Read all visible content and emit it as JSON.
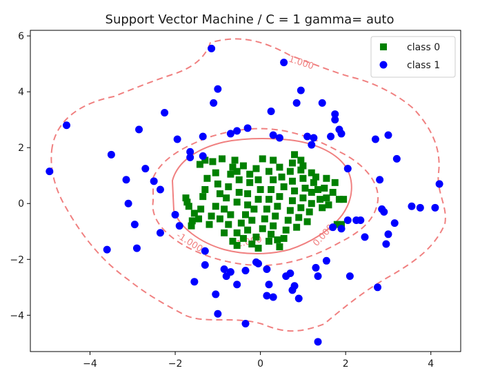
{
  "chart_data": {
    "type": "scatter",
    "title": "Support Vector Machine / C = 1 gamma= auto",
    "xlabel": "",
    "ylabel": "",
    "xlim": [
      -5.4,
      4.7
    ],
    "ylim": [
      -5.3,
      6.2
    ],
    "x_ticks": [
      -4,
      -2,
      0,
      2,
      4
    ],
    "y_ticks": [
      -4,
      -2,
      0,
      2,
      4,
      6
    ],
    "x_tick_labels": [
      "−4",
      "−2",
      "0",
      "2",
      "4"
    ],
    "y_tick_labels": [
      "−4",
      "−2",
      "0",
      "2",
      "4",
      "6"
    ],
    "grid": false,
    "legend_position": "upper right",
    "colors": {
      "class0": "#008000",
      "class1": "#0000ff",
      "contour": "#f08080",
      "axes": "#000000"
    },
    "series": [
      {
        "name": "class 0",
        "marker": "square",
        "points": [
          [
            -1.75,
            0.2
          ],
          [
            -1.72,
            0.05
          ],
          [
            -1.68,
            -0.1
          ],
          [
            -1.55,
            -0.35
          ],
          [
            -1.6,
            -0.62
          ],
          [
            -1.62,
            -0.8
          ],
          [
            -1.45,
            -0.55
          ],
          [
            -1.4,
            -0.2
          ],
          [
            -1.35,
            0.25
          ],
          [
            -1.3,
            0.5
          ],
          [
            -1.25,
            0.9
          ],
          [
            -1.42,
            1.4
          ],
          [
            -1.3,
            1.55
          ],
          [
            -1.12,
            1.5
          ],
          [
            -1.05,
            1.1
          ],
          [
            -1.0,
            0.7
          ],
          [
            -0.95,
            0.35
          ],
          [
            -1.05,
            -0.1
          ],
          [
            -1.15,
            -0.45
          ],
          [
            -1.2,
            -0.75
          ],
          [
            -0.95,
            -0.55
          ],
          [
            -0.85,
            -0.2
          ],
          [
            -0.8,
            0.2
          ],
          [
            -0.75,
            0.6
          ],
          [
            -0.7,
            1.05
          ],
          [
            -0.65,
            1.3
          ],
          [
            -0.9,
            1.6
          ],
          [
            -0.6,
            1.55
          ],
          [
            -0.55,
            1.15
          ],
          [
            -0.5,
            0.85
          ],
          [
            -0.5,
            0.4
          ],
          [
            -0.55,
            0.05
          ],
          [
            -0.7,
            -0.4
          ],
          [
            -0.75,
            -0.75
          ],
          [
            -0.85,
            -1.05
          ],
          [
            -0.65,
            -1.35
          ],
          [
            -0.55,
            -1.05
          ],
          [
            -0.45,
            -0.7
          ],
          [
            -0.35,
            -0.4
          ],
          [
            -0.3,
            -0.05
          ],
          [
            -0.3,
            0.35
          ],
          [
            -0.25,
            0.75
          ],
          [
            -0.25,
            1.05
          ],
          [
            -0.4,
            1.35
          ],
          [
            -0.1,
            1.25
          ],
          [
            -0.05,
            0.85
          ],
          [
            0.0,
            0.5
          ],
          [
            -0.05,
            0.15
          ],
          [
            -0.15,
            -0.2
          ],
          [
            -0.2,
            -0.6
          ],
          [
            -0.3,
            -0.95
          ],
          [
            -0.4,
            -1.25
          ],
          [
            -0.55,
            -1.5
          ],
          [
            -0.2,
            -1.45
          ],
          [
            -0.1,
            -1.2
          ],
          [
            0.05,
            -0.9
          ],
          [
            0.1,
            -0.55
          ],
          [
            0.15,
            -0.2
          ],
          [
            0.2,
            0.15
          ],
          [
            0.25,
            0.5
          ],
          [
            0.3,
            0.85
          ],
          [
            0.2,
            1.15
          ],
          [
            0.05,
            1.6
          ],
          [
            0.3,
            1.55
          ],
          [
            0.45,
            1.3
          ],
          [
            0.5,
            0.95
          ],
          [
            0.55,
            0.6
          ],
          [
            0.45,
            0.25
          ],
          [
            0.4,
            -0.1
          ],
          [
            0.35,
            -0.45
          ],
          [
            0.3,
            -0.8
          ],
          [
            0.25,
            -1.1
          ],
          [
            0.2,
            -1.35
          ],
          [
            0.45,
            -1.55
          ],
          [
            0.55,
            -1.25
          ],
          [
            0.6,
            -0.95
          ],
          [
            0.65,
            -0.6
          ],
          [
            0.7,
            -0.25
          ],
          [
            0.75,
            0.1
          ],
          [
            0.8,
            0.45
          ],
          [
            0.75,
            0.8
          ],
          [
            0.7,
            1.15
          ],
          [
            0.75,
            1.45
          ],
          [
            0.8,
            1.75
          ],
          [
            0.95,
            1.55
          ],
          [
            0.95,
            1.2
          ],
          [
            1.0,
            0.9
          ],
          [
            1.05,
            0.55
          ],
          [
            1.0,
            0.2
          ],
          [
            0.95,
            -0.15
          ],
          [
            0.9,
            -0.5
          ],
          [
            0.85,
            -0.85
          ],
          [
            1.1,
            -0.65
          ],
          [
            1.15,
            -0.3
          ],
          [
            1.2,
            0.0
          ],
          [
            1.2,
            0.4
          ],
          [
            1.25,
            0.75
          ],
          [
            1.2,
            1.1
          ],
          [
            1.3,
            0.95
          ],
          [
            1.35,
            0.5
          ],
          [
            1.4,
            0.15
          ],
          [
            1.45,
            -0.15
          ],
          [
            1.5,
            0.55
          ],
          [
            1.55,
            0.2
          ],
          [
            1.6,
            -0.05
          ],
          [
            1.7,
            0.4
          ],
          [
            1.75,
            0.75
          ],
          [
            1.55,
            0.9
          ],
          [
            1.85,
            0.15
          ],
          [
            1.95,
            0.15
          ],
          [
            1.8,
            -0.75
          ],
          [
            1.9,
            -0.75
          ],
          [
            0.4,
            -1.3
          ],
          [
            -0.05,
            -1.6
          ],
          [
            1.0,
            1.35
          ]
        ]
      },
      {
        "name": "class 1",
        "marker": "circle",
        "points": [
          [
            -4.95,
            1.15
          ],
          [
            -4.55,
            2.8
          ],
          [
            -3.5,
            1.75
          ],
          [
            -3.6,
            -1.65
          ],
          [
            -3.15,
            0.85
          ],
          [
            -3.1,
            0.0
          ],
          [
            -2.95,
            -0.75
          ],
          [
            -2.9,
            -1.6
          ],
          [
            -2.85,
            2.65
          ],
          [
            -2.7,
            1.25
          ],
          [
            -2.5,
            0.8
          ],
          [
            -2.35,
            0.5
          ],
          [
            -2.35,
            -1.05
          ],
          [
            -2.25,
            3.25
          ],
          [
            -2.0,
            -0.4
          ],
          [
            -1.95,
            2.3
          ],
          [
            -1.9,
            -0.8
          ],
          [
            -1.65,
            1.65
          ],
          [
            -1.65,
            1.85
          ],
          [
            -1.55,
            -2.8
          ],
          [
            -1.35,
            2.4
          ],
          [
            -1.35,
            1.7
          ],
          [
            -1.3,
            -1.7
          ],
          [
            -1.3,
            -2.2
          ],
          [
            -1.15,
            5.55
          ],
          [
            -1.1,
            3.6
          ],
          [
            -1.0,
            4.1
          ],
          [
            -1.05,
            -3.25
          ],
          [
            -1.0,
            -3.95
          ],
          [
            -0.85,
            -2.35
          ],
          [
            -0.8,
            -2.6
          ],
          [
            -0.7,
            -2.45
          ],
          [
            -0.7,
            2.5
          ],
          [
            -0.55,
            2.6
          ],
          [
            -0.55,
            -2.9
          ],
          [
            -0.35,
            -4.3
          ],
          [
            -0.35,
            -2.4
          ],
          [
            -0.3,
            2.7
          ],
          [
            -0.1,
            -2.1
          ],
          [
            -0.05,
            -2.15
          ],
          [
            0.15,
            -2.35
          ],
          [
            0.15,
            -3.3
          ],
          [
            0.2,
            -2.9
          ],
          [
            0.25,
            3.3
          ],
          [
            0.3,
            -3.35
          ],
          [
            0.3,
            2.45
          ],
          [
            0.45,
            2.35
          ],
          [
            0.55,
            5.05
          ],
          [
            0.6,
            -2.6
          ],
          [
            0.7,
            -2.5
          ],
          [
            0.75,
            -3.1
          ],
          [
            0.8,
            -2.95
          ],
          [
            0.85,
            3.6
          ],
          [
            0.9,
            -3.4
          ],
          [
            0.95,
            4.05
          ],
          [
            1.1,
            2.4
          ],
          [
            1.2,
            2.1
          ],
          [
            1.25,
            2.35
          ],
          [
            1.3,
            -2.3
          ],
          [
            1.35,
            -2.6
          ],
          [
            1.35,
            -4.95
          ],
          [
            1.45,
            3.6
          ],
          [
            1.55,
            -2.05
          ],
          [
            1.65,
            2.4
          ],
          [
            1.75,
            3.2
          ],
          [
            1.75,
            3.0
          ],
          [
            1.85,
            2.65
          ],
          [
            1.9,
            2.5
          ],
          [
            2.05,
            1.25
          ],
          [
            2.1,
            -2.6
          ],
          [
            2.25,
            -0.6
          ],
          [
            2.35,
            -0.6
          ],
          [
            2.45,
            -1.2
          ],
          [
            2.7,
            2.3
          ],
          [
            2.75,
            -3.0
          ],
          [
            2.8,
            0.85
          ],
          [
            2.85,
            -0.2
          ],
          [
            2.9,
            -0.3
          ],
          [
            2.95,
            -1.45
          ],
          [
            3.0,
            2.45
          ],
          [
            3.0,
            -1.1
          ],
          [
            3.15,
            -0.7
          ],
          [
            3.2,
            1.6
          ],
          [
            3.55,
            -0.1
          ],
          [
            3.75,
            -0.15
          ],
          [
            4.1,
            -0.15
          ],
          [
            4.2,
            0.7
          ],
          [
            1.9,
            -0.9
          ],
          [
            2.05,
            -0.6
          ],
          [
            1.7,
            -0.85
          ]
        ]
      }
    ],
    "contour_levels": [
      "-1.000",
      "0.000",
      "1.000"
    ],
    "contour_labels_shown": [
      "1.000",
      "-1.000",
      "0.000",
      "-1.000"
    ],
    "legend": {
      "entries": [
        "class 0",
        "class 1"
      ]
    }
  }
}
